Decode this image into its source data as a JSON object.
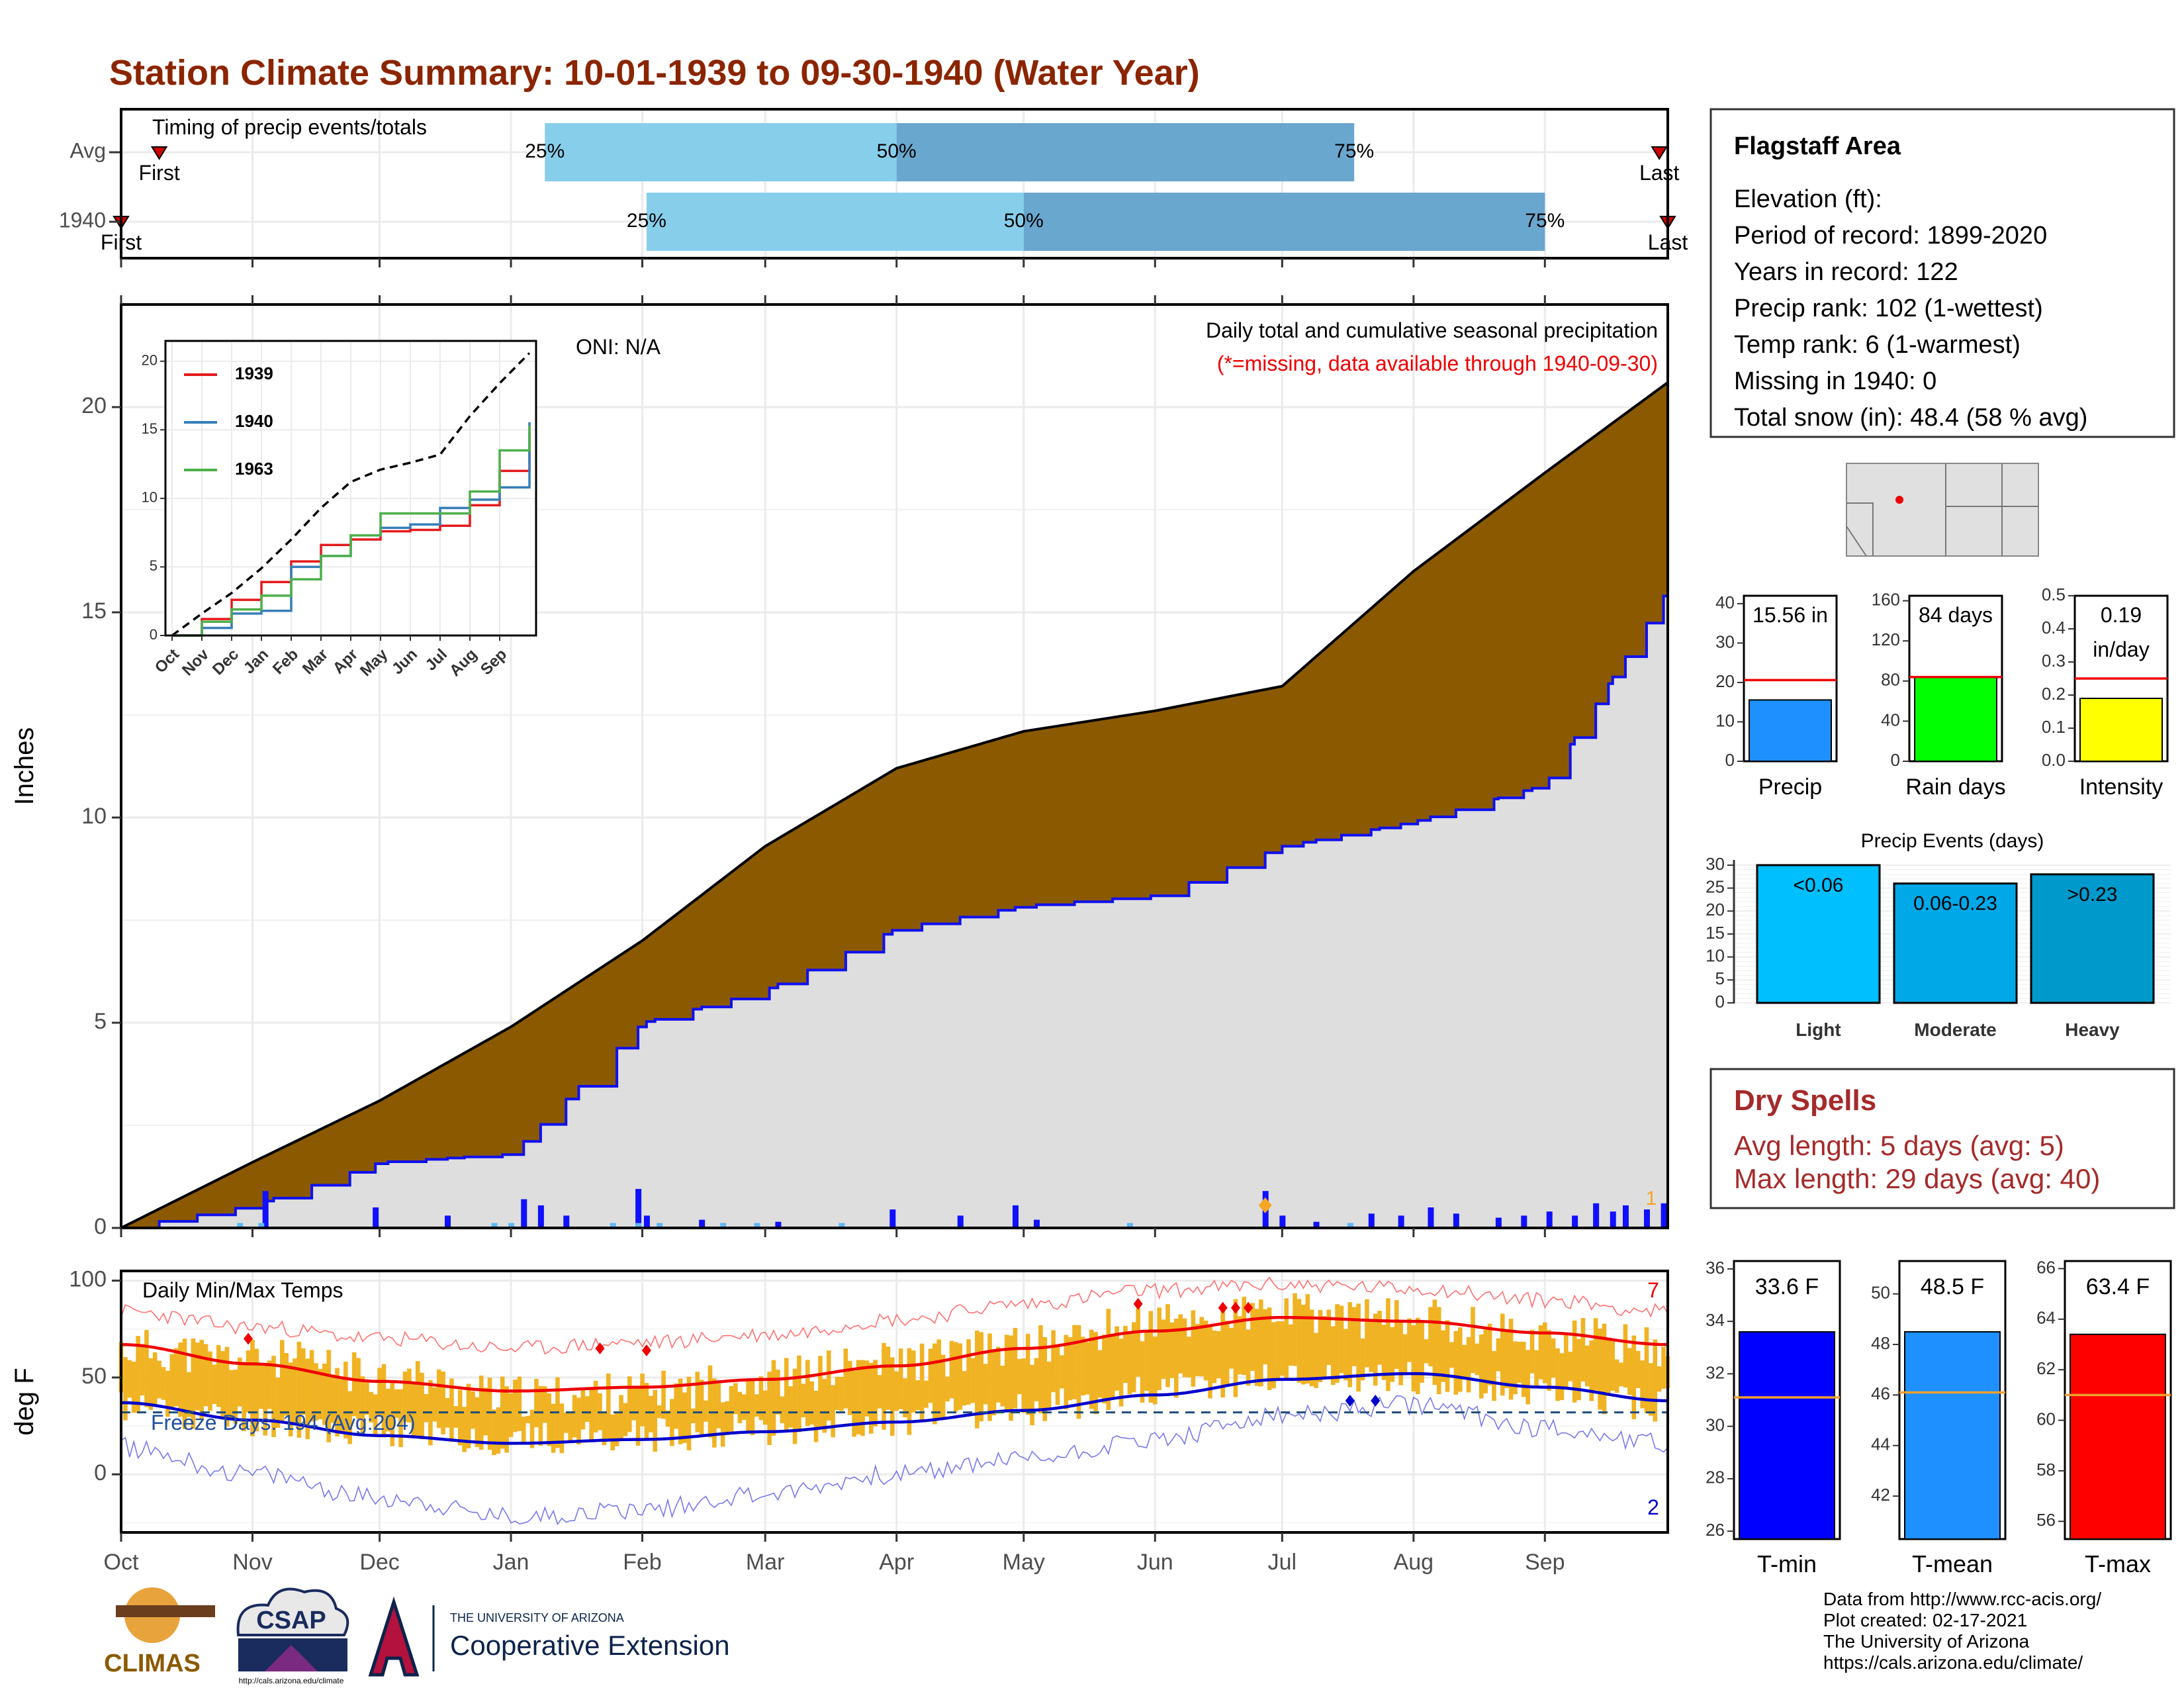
{
  "title": "Station Climate Summary: 10-01-1939 to 09-30-1940 (Water Year)",
  "timing": {
    "panel_title": "Timing of precip events/totals",
    "rows": [
      "Avg",
      "1940"
    ],
    "avg": {
      "first_label": "First",
      "last_label": "Last",
      "q25": "25%",
      "q50": "50%",
      "q75": "75%"
    },
    "y1940": {
      "first_label": "First",
      "last_label": "Last",
      "q25": "25%",
      "q50": "50%",
      "q75": "75%"
    }
  },
  "main": {
    "caption": "Daily total and cumulative seasonal precipitation",
    "missing_note": "(*=missing, data available through 1940-09-30)",
    "oni": "ONI: N/A",
    "ylabel": "Inches",
    "yticks": [
      "0",
      "5",
      "10",
      "15",
      "20"
    ],
    "marker_count": "1"
  },
  "inset": {
    "yticks": [
      "0",
      "5",
      "10",
      "15",
      "20"
    ],
    "xticks": [
      "Oct",
      "Nov",
      "Dec",
      "Jan",
      "Feb",
      "Mar",
      "Apr",
      "May",
      "Jun",
      "Jul",
      "Aug",
      "Sep"
    ],
    "legend": [
      "1939",
      "1940",
      "1963"
    ],
    "colors": {
      "1939": "#e41a1c",
      "1940": "#377eb8",
      "1963": "#4daf4a"
    }
  },
  "temps": {
    "caption": "Daily Min/Max Temps",
    "ylabel": "deg F",
    "yticks": [
      "0",
      "50",
      "100"
    ],
    "freeze_days": "Freeze Days: 194 (Avg:204)",
    "max_record_count": "7",
    "min_record_count": "2"
  },
  "months": [
    "Oct",
    "Nov",
    "Dec",
    "Jan",
    "Feb",
    "Mar",
    "Apr",
    "May",
    "Jun",
    "Jul",
    "Aug",
    "Sep"
  ],
  "info": {
    "station": "Flagstaff Area",
    "lines": [
      "Elevation (ft):",
      "Period of record: 1899-2020",
      "Years in record: 122",
      "Precip rank: 102 (1-wettest)",
      "Temp rank: 6 (1-warmest)",
      "Missing in 1940: 0",
      "Total snow (in): 48.4 (58 % avg)"
    ]
  },
  "gauges": [
    {
      "label": "Precip",
      "value_text": "15.56 in",
      "value_text2": "",
      "yticks": [
        "0",
        "10",
        "20",
        "30",
        "40"
      ],
      "color": "#1e90ff"
    },
    {
      "label": "Rain days",
      "value_text": "84 days",
      "value_text2": "",
      "yticks": [
        "0",
        "40",
        "80",
        "120",
        "160"
      ],
      "color": "#00ff00"
    },
    {
      "label": "Intensity",
      "value_text": "0.19",
      "value_text2": "in/day",
      "yticks": [
        "0.0",
        "0.1",
        "0.2",
        "0.3",
        "0.4",
        "0.5"
      ],
      "color": "#ffff00"
    }
  ],
  "events": {
    "title": "Precip Events (days)",
    "yticks": [
      "0",
      "5",
      "10",
      "15",
      "20",
      "25",
      "30"
    ],
    "categories": [
      "Light",
      "Moderate",
      "Heavy"
    ],
    "bar_labels": [
      "<0.06",
      "0.06-0.23",
      ">0.23"
    ],
    "colors": [
      "#00bfff",
      "#00a8e8",
      "#0099cc"
    ]
  },
  "dry": {
    "title": "Dry Spells",
    "avg_length": "Avg length: 5 days (avg: 5)",
    "max_length": "Max length: 29 days (avg: 40)"
  },
  "temp_gauges": [
    {
      "label": "T-min",
      "value_text": "33.6 F",
      "yticks": [
        "26",
        "28",
        "30",
        "32",
        "34",
        "36"
      ],
      "color": "#0000ff"
    },
    {
      "label": "T-mean",
      "value_text": "48.5 F",
      "yticks": [
        "42",
        "44",
        "46",
        "48",
        "50"
      ],
      "color": "#1e90ff"
    },
    {
      "label": "T-max",
      "value_text": "63.4 F",
      "yticks": [
        "56",
        "58",
        "60",
        "62",
        "64",
        "66"
      ],
      "color": "#ff0000"
    }
  ],
  "footer": {
    "lines": [
      "Data from http://www.rcc-acis.org/",
      "Plot created: 02-17-2021",
      "The University of Arizona",
      "https://cals.arizona.edu/climate/"
    ],
    "logos": {
      "climas": "CLIMAS",
      "csap": "CSAP",
      "csap_url": "http://cals.arizona.edu/climate",
      "ua_small": "THE UNIVERSITY OF ARIZONA",
      "ua_big": "Cooperative Extension"
    }
  },
  "chart_data": [
    {
      "type": "bar",
      "role": "timing of precip events",
      "categories": [
        "Avg",
        "1940"
      ],
      "series": [
        {
          "name": "Avg",
          "first": "1939-10-10",
          "q25": "1940-01-09",
          "q50": "1940-04-01",
          "q75": "1940-07-18",
          "last": "1940-09-28"
        },
        {
          "name": "1940",
          "first": "1939-10-01",
          "q25": "1940-02-02",
          "q50": "1940-05-01",
          "q75": "1940-09-01",
          "last": "1940-09-30"
        }
      ]
    },
    {
      "type": "area",
      "role": "cumulative seasonal precipitation",
      "ylabel": "Inches",
      "ylim": [
        0,
        22.5
      ],
      "x": [
        "1939-10-01",
        "1939-11-01",
        "1939-12-01",
        "1940-01-01",
        "1940-02-01",
        "1940-03-01",
        "1940-04-01",
        "1940-05-01",
        "1940-06-01",
        "1940-07-01",
        "1940-08-01",
        "1940-09-01",
        "1940-09-30"
      ],
      "series": [
        {
          "name": "Avg",
          "values": [
            0,
            1.6,
            3.1,
            4.9,
            7.0,
            9.3,
            11.2,
            12.1,
            12.6,
            13.2,
            16.0,
            18.4,
            20.6
          ]
        },
        {
          "name": "1940",
          "values": [
            0,
            0.55,
            1.6,
            1.8,
            5.0,
            5.8,
            7.3,
            7.85,
            8.1,
            9.3,
            9.9,
            10.8,
            15.56
          ]
        }
      ],
      "daily_events": [
        [
          "1939-11-04",
          0.9
        ],
        [
          "1939-11-30",
          0.5
        ],
        [
          "1939-12-17",
          0.3
        ],
        [
          "1940-01-04",
          0.7
        ],
        [
          "1940-01-08",
          0.55
        ],
        [
          "1940-01-14",
          0.3
        ],
        [
          "1940-01-31",
          0.95
        ],
        [
          "1940-02-02",
          0.3
        ],
        [
          "1940-02-15",
          0.2
        ],
        [
          "1940-03-04",
          0.15
        ],
        [
          "1940-03-31",
          0.45
        ],
        [
          "1940-04-16",
          0.3
        ],
        [
          "1940-04-29",
          0.55
        ],
        [
          "1940-05-04",
          0.2
        ],
        [
          "1940-06-27",
          0.9
        ],
        [
          "1940-07-01",
          0.3
        ],
        [
          "1940-07-09",
          0.15
        ],
        [
          "1940-07-22",
          0.35
        ],
        [
          "1940-07-29",
          0.3
        ],
        [
          "1940-08-05",
          0.5
        ],
        [
          "1940-08-11",
          0.35
        ],
        [
          "1940-08-21",
          0.25
        ],
        [
          "1940-08-27",
          0.3
        ],
        [
          "1940-09-02",
          0.4
        ],
        [
          "1940-09-08",
          0.3
        ],
        [
          "1940-09-13",
          0.6
        ],
        [
          "1940-09-17",
          0.4
        ],
        [
          "1940-09-20",
          0.55
        ],
        [
          "1940-09-25",
          0.45
        ],
        [
          "1940-09-29",
          0.6
        ]
      ]
    },
    {
      "type": "line",
      "role": "inset cumulative precipitation",
      "x": [
        "Oct",
        "Nov",
        "Dec",
        "Jan",
        "Feb",
        "Mar",
        "Apr",
        "May",
        "Jun",
        "Jul",
        "Aug",
        "Sep",
        "end"
      ],
      "ylim": [
        0,
        20
      ],
      "series": [
        {
          "name": "Avg",
          "values": [
            0,
            1.6,
            3.1,
            4.9,
            7.0,
            9.3,
            11.2,
            12.1,
            12.6,
            13.2,
            16.0,
            18.4,
            20.6
          ]
        },
        {
          "name": "1939",
          "values": [
            0,
            1.2,
            2.6,
            3.9,
            5.4,
            6.6,
            7.0,
            7.6,
            7.7,
            8.0,
            9.5,
            12.0,
            14.8
          ]
        },
        {
          "name": "1940",
          "values": [
            0,
            0.55,
            1.6,
            1.8,
            5.0,
            5.8,
            7.3,
            7.85,
            8.1,
            9.3,
            9.9,
            10.8,
            15.56
          ]
        },
        {
          "name": "1963",
          "values": [
            0,
            1.0,
            1.9,
            2.9,
            4.1,
            5.8,
            7.3,
            8.9,
            8.9,
            8.9,
            10.5,
            13.5,
            15.3
          ]
        }
      ]
    },
    {
      "type": "line",
      "role": "daily min/max temperatures",
      "ylabel": "deg F",
      "ylim": [
        -30,
        105
      ],
      "x": [
        "Oct",
        "Nov",
        "Dec",
        "Jan",
        "Feb",
        "Mar",
        "Apr",
        "May",
        "Jun",
        "Jul",
        "Aug",
        "Sep",
        "end"
      ],
      "series": [
        {
          "name": "Avg max",
          "values": [
            67,
            57,
            48,
            43,
            45,
            49,
            56,
            65,
            74,
            81,
            79,
            73,
            67
          ]
        },
        {
          "name": "Avg min",
          "values": [
            37,
            28,
            20,
            16,
            18,
            22,
            27,
            33,
            41,
            49,
            52,
            45,
            38
          ]
        },
        {
          "name": "Record high",
          "values": [
            84,
            76,
            70,
            65,
            68,
            72,
            80,
            88,
            95,
            98,
            96,
            90,
            84
          ]
        },
        {
          "name": "Record low",
          "values": [
            14,
            0,
            -12,
            -22,
            -18,
            -10,
            0,
            8,
            18,
            30,
            36,
            24,
            16
          ]
        },
        {
          "name": "1940 max",
          "values": [
            65,
            60,
            52,
            40,
            42,
            50,
            58,
            66,
            78,
            83,
            80,
            72,
            66
          ]
        },
        {
          "name": "1940 min",
          "values": [
            35,
            28,
            22,
            18,
            20,
            24,
            28,
            34,
            43,
            50,
            50,
            43,
            36
          ]
        }
      ],
      "freeze_line": 32
    },
    {
      "type": "bar",
      "role": "annual totals vs average",
      "categories": [
        "Precip",
        "Rain days",
        "Intensity"
      ],
      "values": [
        15.56,
        84,
        0.19
      ],
      "averages": [
        20.6,
        84,
        0.25
      ],
      "ylims": [
        [
          0,
          42
        ],
        [
          0,
          165
        ],
        [
          0,
          0.5
        ]
      ]
    },
    {
      "type": "bar",
      "role": "precip events (days)",
      "categories": [
        "Light",
        "Moderate",
        "Heavy"
      ],
      "values": [
        30,
        26,
        28
      ],
      "ylim": [
        0,
        31
      ]
    },
    {
      "type": "bar",
      "role": "annual temperatures",
      "categories": [
        "T-min",
        "T-mean",
        "T-max"
      ],
      "values": [
        33.6,
        48.5,
        63.4
      ],
      "averages": [
        31.1,
        46.1,
        61.0
      ],
      "ylims": [
        [
          25.7,
          36.3
        ],
        [
          40.3,
          51.3
        ],
        [
          55.3,
          66.3
        ]
      ]
    }
  ]
}
